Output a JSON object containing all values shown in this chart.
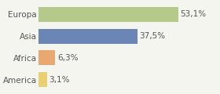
{
  "categories": [
    "America",
    "Africa",
    "Asia",
    "Europa"
  ],
  "values": [
    3.1,
    6.3,
    37.5,
    53.1
  ],
  "labels": [
    "3,1%",
    "6,3%",
    "37,5%",
    "53,1%"
  ],
  "bar_colors": [
    "#e8d070",
    "#e8a870",
    "#6b85b5",
    "#b5c98a"
  ],
  "background_color": "#f5f5f0",
  "xlim": [
    0,
    68
  ],
  "bar_height": 0.68,
  "label_fontsize": 7.5,
  "tick_fontsize": 7.5,
  "grid_color": "#dddddd",
  "spine_color": "#cccccc"
}
